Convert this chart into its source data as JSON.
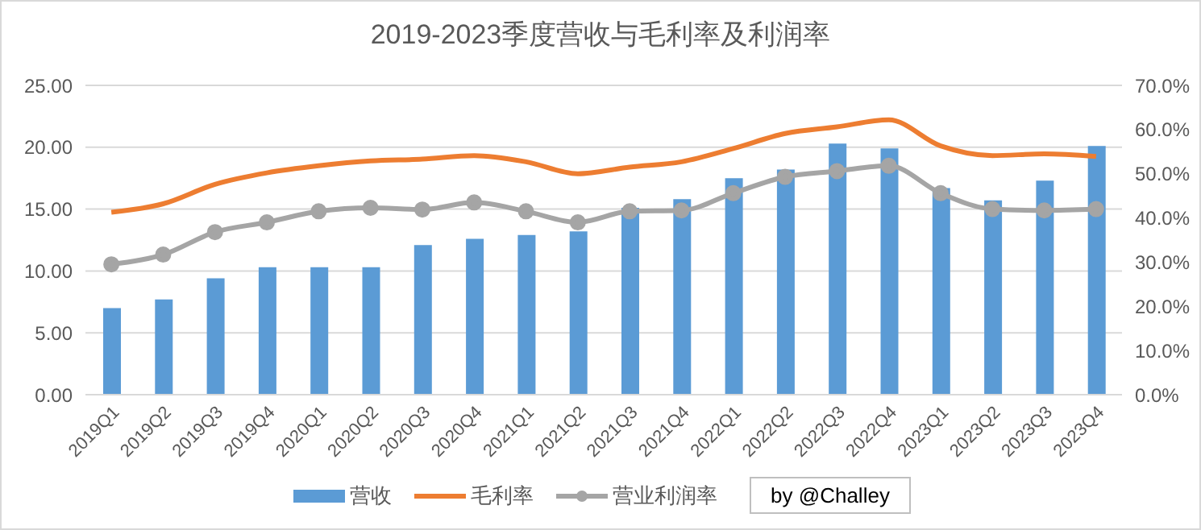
{
  "chart_data": {
    "type": "bar",
    "title": "2019-2023季度营收与毛利率及利润率",
    "categories": [
      "2019Q1",
      "2019Q2",
      "2019Q3",
      "2019Q4",
      "2020Q1",
      "2020Q2",
      "2020Q3",
      "2020Q4",
      "2021Q1",
      "2021Q2",
      "2021Q3",
      "2021Q4",
      "2022Q1",
      "2022Q2",
      "2022Q3",
      "2022Q4",
      "2023Q1",
      "2023Q2",
      "2023Q3",
      "2023Q4"
    ],
    "series": [
      {
        "name": "营收",
        "color": "#5b9bd5",
        "values": [
          7.0,
          7.7,
          9.4,
          10.3,
          10.3,
          10.3,
          12.1,
          12.6,
          12.9,
          13.2,
          15.1,
          15.8,
          17.5,
          18.2,
          20.3,
          19.9,
          16.7,
          15.7,
          17.3,
          20.1
        ]
      },
      {
        "name": "毛利率",
        "type": "line",
        "axis": "y2",
        "color": "#ed7d31",
        "marker": "none",
        "values": [
          41.3,
          43.2,
          47.6,
          50.2,
          51.8,
          52.9,
          53.3,
          54.1,
          52.7,
          50.0,
          51.5,
          52.7,
          55.7,
          59.1,
          60.6,
          62.2,
          56.3,
          54.1,
          54.5,
          53.9
        ]
      },
      {
        "name": "营业利润率",
        "type": "line",
        "axis": "y2",
        "color": "#a5a5a5",
        "marker": "circle",
        "values": [
          29.5,
          31.7,
          36.8,
          39.0,
          41.5,
          42.3,
          41.9,
          43.5,
          41.5,
          39.0,
          41.5,
          41.7,
          45.6,
          49.3,
          50.6,
          51.8,
          45.6,
          42.0,
          41.7,
          42.0
        ]
      }
    ],
    "ylim": [
      0,
      25
    ],
    "yticks": [
      {
        "value": 0,
        "label": "0.00"
      },
      {
        "value": 5,
        "label": "5.00"
      },
      {
        "value": 10,
        "label": "10.00"
      },
      {
        "value": 15,
        "label": "15.00"
      },
      {
        "value": 20,
        "label": "20.00"
      },
      {
        "value": 25,
        "label": "25.00"
      }
    ],
    "y2lim": [
      0,
      70
    ],
    "y2ticks": [
      {
        "value": 0,
        "label": "0.0%"
      },
      {
        "value": 10,
        "label": "10.0%"
      },
      {
        "value": 20,
        "label": "20.0%"
      },
      {
        "value": 30,
        "label": "30.0%"
      },
      {
        "value": 40,
        "label": "40.0%"
      },
      {
        "value": 50,
        "label": "50.0%"
      },
      {
        "value": 60,
        "label": "60.0%"
      },
      {
        "value": 70,
        "label": "70.0%"
      }
    ],
    "grid": "y",
    "legend": "bottom",
    "annotations": [
      "by @Challey"
    ]
  }
}
